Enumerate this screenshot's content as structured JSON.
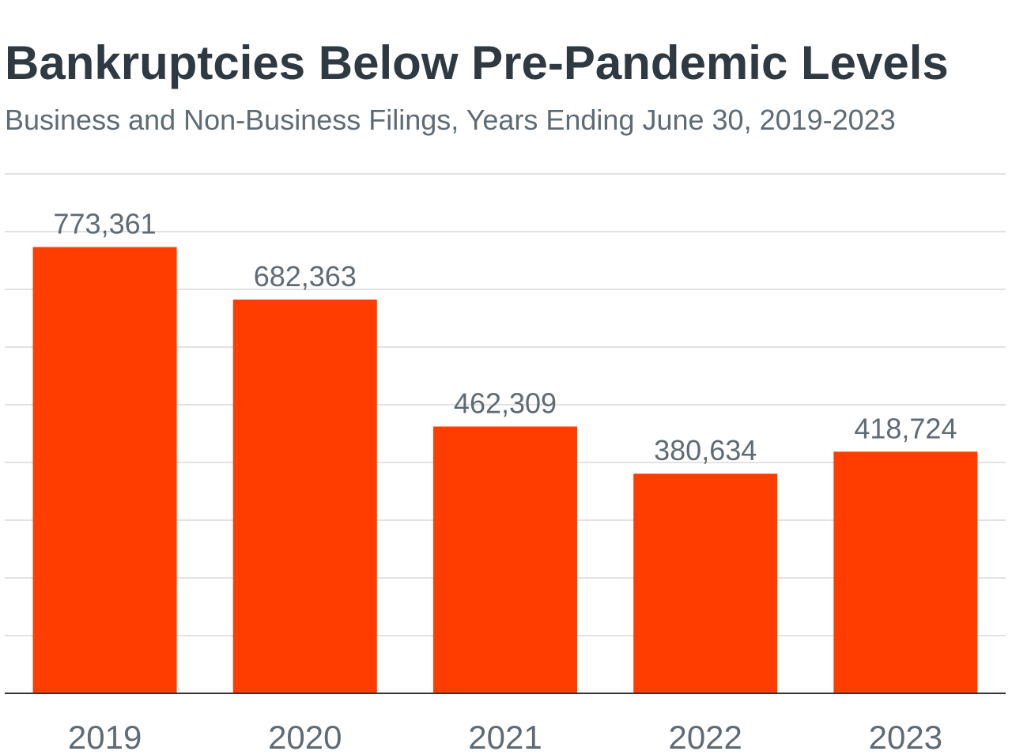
{
  "chart_data": {
    "type": "bar",
    "title": "Bankruptcies Below Pre-Pandemic Levels",
    "subtitle": "Business and Non-Business Filings, Years Ending June 30, 2019-2023",
    "xlabel": "",
    "ylabel": "",
    "categories": [
      "2019",
      "2020",
      "2021",
      "2022",
      "2023"
    ],
    "values": [
      773361,
      682363,
      462309,
      380634,
      418724
    ],
    "data_labels": [
      "773,361",
      "682,363",
      "462,309",
      "380,634",
      "418,724"
    ],
    "ylim": [
      0,
      900000
    ],
    "y_gridline_step": 100000,
    "y_tick_labels_shown": false,
    "grid": true,
    "legend": "none",
    "bar_color": "#ff3d00",
    "gridline_color": "#d9d9d9",
    "axis_color": "#333333",
    "text_color": "#5e6b75",
    "title_color": "#2f3942"
  }
}
